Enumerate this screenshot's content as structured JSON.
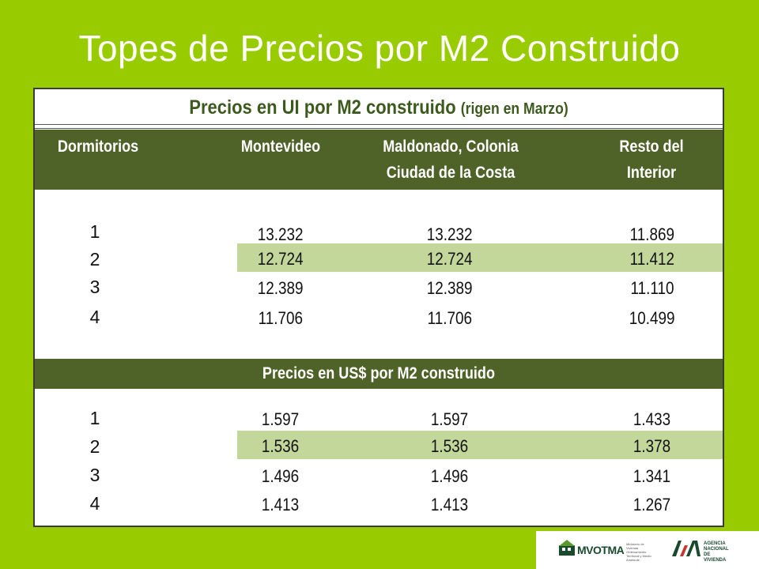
{
  "slide": {
    "title": "Topes de Precios por M2 Construido"
  },
  "table": {
    "title_main": "Precios en UI por M2 construido",
    "title_sub": "(rigen en Marzo)",
    "headers": {
      "dormitorios": "Dormitorios",
      "montevideo": "Montevideo",
      "maldonado_l1": "Maldonado, Colonia",
      "maldonado_l2": "Ciudad de la Costa",
      "resto_l1": "Resto del",
      "resto_l2": "Interior"
    },
    "ui_rows": [
      {
        "dorm": "1",
        "montevideo": "13.232",
        "maldonado": "13.232",
        "resto": "11.869"
      },
      {
        "dorm": "2",
        "montevideo": "12.724",
        "maldonado": "12.724",
        "resto": "11.412"
      },
      {
        "dorm": "3",
        "montevideo": "12.389",
        "maldonado": "12.389",
        "resto": "11.110"
      },
      {
        "dorm": "4",
        "montevideo": "11.706",
        "maldonado": "11.706",
        "resto": "10.499"
      }
    ],
    "usd_title": "Precios en US$ por M2 construido",
    "usd_rows": [
      {
        "dorm": "1",
        "montevideo": "1.597",
        "maldonado": "1.597",
        "resto": "1.433"
      },
      {
        "dorm": "2",
        "montevideo": "1.536",
        "maldonado": "1.536",
        "resto": "1.378"
      },
      {
        "dorm": "3",
        "montevideo": "1.496",
        "maldonado": "1.496",
        "resto": "1.341"
      },
      {
        "dorm": "4",
        "montevideo": "1.413",
        "maldonado": "1.413",
        "resto": "1.267"
      }
    ]
  },
  "footer": {
    "mvotma_label": "MVOTMA",
    "mvotma_small": "Ministerio de Vivienda Ordenamiento Territorial y Medio Ambiente",
    "anv_l1": "AGENCIA",
    "anv_l2": "NACIONAL",
    "anv_l3": "DE VIVIENDA"
  },
  "colors": {
    "background": "#99cc00",
    "header_band": "#4f6228",
    "highlight_row": "#c4d79b",
    "title_text": "#3d5a1e"
  }
}
